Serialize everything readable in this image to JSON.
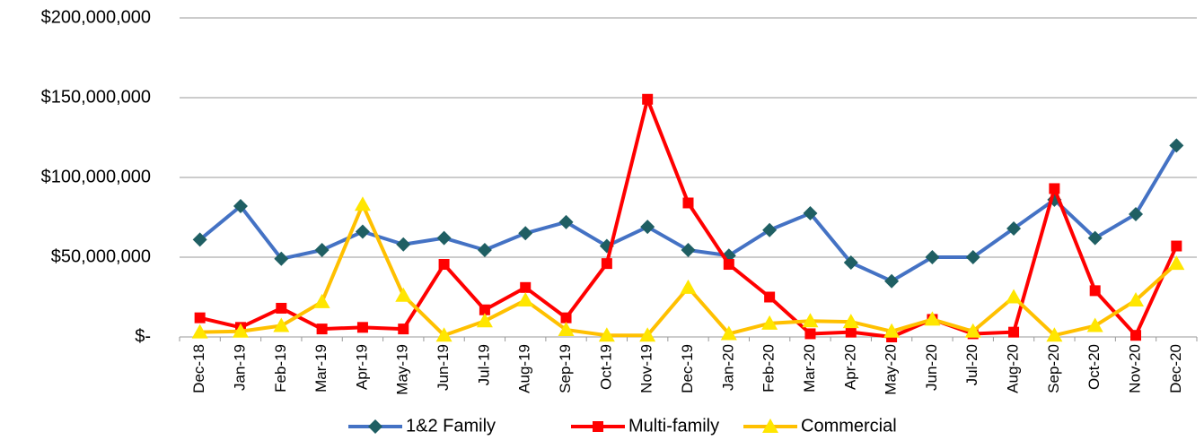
{
  "chart_data": {
    "type": "line",
    "categories": [
      "Dec-18",
      "Jan-19",
      "Feb-19",
      "Mar-19",
      "Apr-19",
      "May-19",
      "Jun-19",
      "Jul-19",
      "Aug-19",
      "Sep-19",
      "Oct-19",
      "Nov-19",
      "Dec-19",
      "Jan-20",
      "Feb-20",
      "Mar-20",
      "Apr-20",
      "May-20",
      "Jun-20",
      "Jul-20",
      "Aug-20",
      "Sep-20",
      "Oct-20",
      "Nov-20",
      "Dec-20"
    ],
    "series": [
      {
        "name": "1&2 Family",
        "color": "#4472c4",
        "marker": "diamond",
        "marker_color": "#1f5f63",
        "values": [
          61000000,
          82000000,
          49000000,
          54500000,
          66000000,
          58000000,
          62000000,
          54500000,
          65000000,
          72000000,
          57000000,
          69000000,
          54500000,
          51000000,
          67000000,
          77500000,
          46600000,
          35000000,
          50000000,
          50000000,
          68000000,
          86000000,
          62000000,
          77000000,
          120000000
        ]
      },
      {
        "name": "Multi-family",
        "color": "#ff0000",
        "marker": "square",
        "marker_color": "#ff0000",
        "values": [
          12000000,
          6000000,
          18000000,
          5000000,
          6000000,
          5000000,
          45500000,
          17000000,
          31000000,
          12000000,
          46000000,
          149000000,
          84000000,
          45500000,
          25000000,
          2000000,
          3000000,
          0,
          11000000,
          2000000,
          3000000,
          93000000,
          29000000,
          1000000,
          57000000
        ]
      },
      {
        "name": "Commercial",
        "color": "#ffc000",
        "marker": "triangle",
        "marker_color": "#ffe600",
        "values": [
          3000000,
          3500000,
          7000000,
          22000000,
          83000000,
          26000000,
          1000000,
          10000000,
          23000000,
          4500000,
          1000000,
          1000000,
          31000000,
          2000000,
          8500000,
          10000000,
          9500000,
          3500000,
          11000000,
          3500000,
          25000000,
          1000000,
          7000000,
          23000000,
          46000000
        ]
      }
    ],
    "ylim": [
      0,
      200000000
    ],
    "yticks": [
      {
        "value": 0,
        "label": "$-"
      },
      {
        "value": 50000000,
        "label": "$50,000,000"
      },
      {
        "value": 100000000,
        "label": "$100,000,000"
      },
      {
        "value": 150000000,
        "label": "$150,000,000"
      },
      {
        "value": 200000000,
        "label": "$200,000,000"
      }
    ],
    "grid": true,
    "legend": "bottom"
  }
}
